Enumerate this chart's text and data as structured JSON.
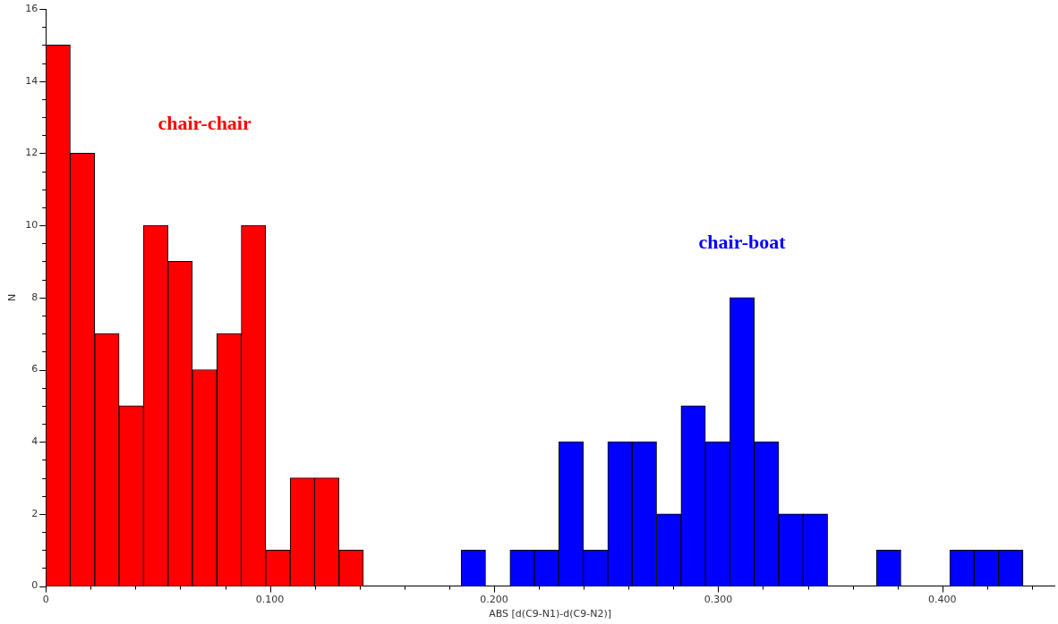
{
  "chart_data": {
    "type": "histogram",
    "xlabel": "ABS [d(C9-N1)-d(C9-N2)]",
    "ylabel": "N",
    "bins": [
      0,
      0.0109,
      0.0218,
      0.0327,
      0.0436,
      0.0545,
      0.0654,
      0.0763,
      0.0872,
      0.0981,
      0.109,
      0.1199,
      0.1308,
      0.1417,
      0.1526,
      0.1635,
      0.1744,
      0.1853,
      0.1962,
      0.2071,
      0.218,
      0.2289,
      0.2398,
      0.2507,
      0.2616,
      0.2725,
      0.2834,
      0.2943,
      0.3052,
      0.3161,
      0.327,
      0.3379,
      0.3488,
      0.3597,
      0.3706,
      0.3815,
      0.3924,
      0.4033,
      0.4142,
      0.4251,
      0.436
    ],
    "series": [
      {
        "name": "chair-chair",
        "color": "#ff0000",
        "values": [
          15,
          12,
          7,
          5,
          10,
          9,
          6,
          7,
          10,
          1,
          3,
          3,
          1,
          null,
          null,
          null,
          null,
          null,
          null,
          null,
          null,
          null,
          null,
          null,
          null,
          null,
          null,
          null,
          null,
          null,
          null,
          null,
          null,
          null,
          null,
          null,
          null,
          null,
          null,
          null
        ]
      },
      {
        "name": "chair-boat",
        "color": "#0000ff",
        "values": [
          null,
          null,
          null,
          null,
          null,
          null,
          null,
          null,
          null,
          null,
          null,
          null,
          null,
          0,
          0,
          0,
          0,
          1,
          0,
          1,
          1,
          4,
          1,
          4,
          4,
          2,
          5,
          4,
          8,
          4,
          2,
          2,
          0,
          0,
          1,
          0,
          0,
          1,
          1,
          1
        ]
      }
    ],
    "xlim": [
      0,
      0.45
    ],
    "xticks": [
      {
        "value": 0,
        "label": "0"
      },
      {
        "value": 0.02,
        "label": null
      },
      {
        "value": 0.04,
        "label": null
      },
      {
        "value": 0.06,
        "label": null
      },
      {
        "value": 0.08,
        "label": null
      },
      {
        "value": 0.1,
        "label": "0.100"
      },
      {
        "value": 0.12,
        "label": null
      },
      {
        "value": 0.14,
        "label": null
      },
      {
        "value": 0.16,
        "label": null
      },
      {
        "value": 0.18,
        "label": null
      },
      {
        "value": 0.2,
        "label": "0.200"
      },
      {
        "value": 0.22,
        "label": null
      },
      {
        "value": 0.24,
        "label": null
      },
      {
        "value": 0.26,
        "label": null
      },
      {
        "value": 0.28,
        "label": null
      },
      {
        "value": 0.3,
        "label": "0.300"
      },
      {
        "value": 0.32,
        "label": null
      },
      {
        "value": 0.34,
        "label": null
      },
      {
        "value": 0.36,
        "label": null
      },
      {
        "value": 0.38,
        "label": null
      },
      {
        "value": 0.4,
        "label": "0.400"
      },
      {
        "value": 0.42,
        "label": null
      },
      {
        "value": 0.44,
        "label": null
      }
    ],
    "ylim": [
      0,
      16
    ],
    "yticks": [
      0,
      {
        "value": 0.5,
        "label": null
      },
      {
        "value": 1,
        "label": null
      },
      {
        "value": 1.5,
        "label": null
      },
      2,
      {
        "value": 2.5,
        "label": null
      },
      {
        "value": 3,
        "label": null
      },
      {
        "value": 3.5,
        "label": null
      },
      4,
      {
        "value": 4.5,
        "label": null
      },
      {
        "value": 5,
        "label": null
      },
      {
        "value": 5.5,
        "label": null
      },
      6,
      {
        "value": 6.5,
        "label": null
      },
      {
        "value": 7,
        "label": null
      },
      {
        "value": 7.5,
        "label": null
      },
      8,
      {
        "value": 8.5,
        "label": null
      },
      {
        "value": 9,
        "label": null
      },
      {
        "value": 9.5,
        "label": null
      },
      10,
      {
        "value": 10.5,
        "label": null
      },
      {
        "value": 11,
        "label": null
      },
      {
        "value": 11.5,
        "label": null
      },
      12,
      {
        "value": 12.5,
        "label": null
      },
      {
        "value": 13,
        "label": null
      },
      {
        "value": 13.5,
        "label": null
      },
      14,
      {
        "value": 14.5,
        "label": null
      },
      {
        "value": 15,
        "label": null
      },
      {
        "value": 15.5,
        "label": null
      },
      16
    ],
    "grid": false,
    "legend": false
  }
}
